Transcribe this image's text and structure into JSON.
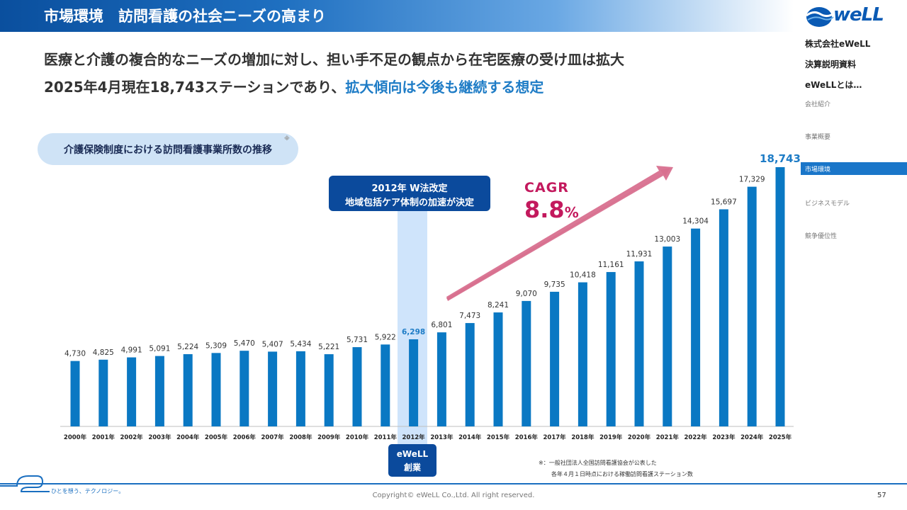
{
  "header": {
    "title": "市場環境　訪問看護の社会ニーズの高まり"
  },
  "logo": {
    "text": "weLL"
  },
  "sidebar": {
    "main_items": [
      "株式会社eWeLL",
      "決算説明資料",
      "eWeLLとは…"
    ],
    "sub_items": [
      "会社紹介",
      "事業概要"
    ],
    "active_item": "市場環境",
    "sub_items_after": [
      "ビジネスモデル",
      "競争優位性"
    ]
  },
  "headline": {
    "line1": "医療と介護の複合的なニーズの増加に対し、担い手不足の観点から在宅医療の受け皿は拡大",
    "line2_prefix": "2025年4月現在18,743ステーションであり、",
    "line2_highlight": "拡大傾向は今後も継続する想定"
  },
  "pill": {
    "label": "介護保険制度における訪問看護事業所数の推移",
    "mark": "※"
  },
  "callout": {
    "line1": "2012年 W法改定",
    "line2": "地域包括ケア体制の加速が決定"
  },
  "founded": {
    "line1": "eWeLL",
    "line2": "創業"
  },
  "cagr": {
    "label": "CAGR",
    "value": "8.8",
    "unit": "%"
  },
  "footnote": {
    "line1": "※：一般社団法人全国訪問看護協会が公表した",
    "line2": "各年４月１日時点における稼働訪問看護ステーション数"
  },
  "footer": {
    "tagline": "ひとを想う、テクノロジー。",
    "copyright": "Copyright© eWeLL Co.,Ltd. All right reserved.",
    "page": "57"
  },
  "colors": {
    "bar": "#0a78c3",
    "highlight_label": "#1e7cc6",
    "arrow": "#d8708f",
    "cagr": "#c3195d",
    "navy": "#0b4a9c"
  },
  "chart_data": {
    "type": "bar",
    "title": "介護保険制度における訪問看護事業所数の推移",
    "xlabel": "",
    "ylabel": "",
    "categories": [
      "2000年",
      "2001年",
      "2002年",
      "2003年",
      "2004年",
      "2005年",
      "2006年",
      "2007年",
      "2008年",
      "2009年",
      "2010年",
      "2011年",
      "2012年",
      "2013年",
      "2014年",
      "2015年",
      "2016年",
      "2017年",
      "2018年",
      "2019年",
      "2020年",
      "2021年",
      "2022年",
      "2023年",
      "2024年",
      "2025年"
    ],
    "values": [
      4730,
      4825,
      4991,
      5091,
      5224,
      5309,
      5470,
      5407,
      5434,
      5221,
      5731,
      5922,
      6298,
      6801,
      7473,
      8241,
      9070,
      9735,
      10418,
      11161,
      11931,
      13003,
      14304,
      15697,
      17329,
      18743
    ],
    "labels": [
      "4,730",
      "4,825",
      "4,991",
      "5,091",
      "5,224",
      "5,309",
      "5,470",
      "5,407",
      "5,434",
      "5,221",
      "5,731",
      "5,922",
      "6,298",
      "6,801",
      "7,473",
      "8,241",
      "9,070",
      "9,735",
      "10,418",
      "11,161",
      "11,931",
      "13,003",
      "14,304",
      "15,697",
      "17,329",
      "18,743"
    ],
    "highlighted_category": "2012年",
    "emphasized_category": "2025年",
    "ylim": [
      0,
      18743
    ],
    "grid": false,
    "legend": "none"
  }
}
